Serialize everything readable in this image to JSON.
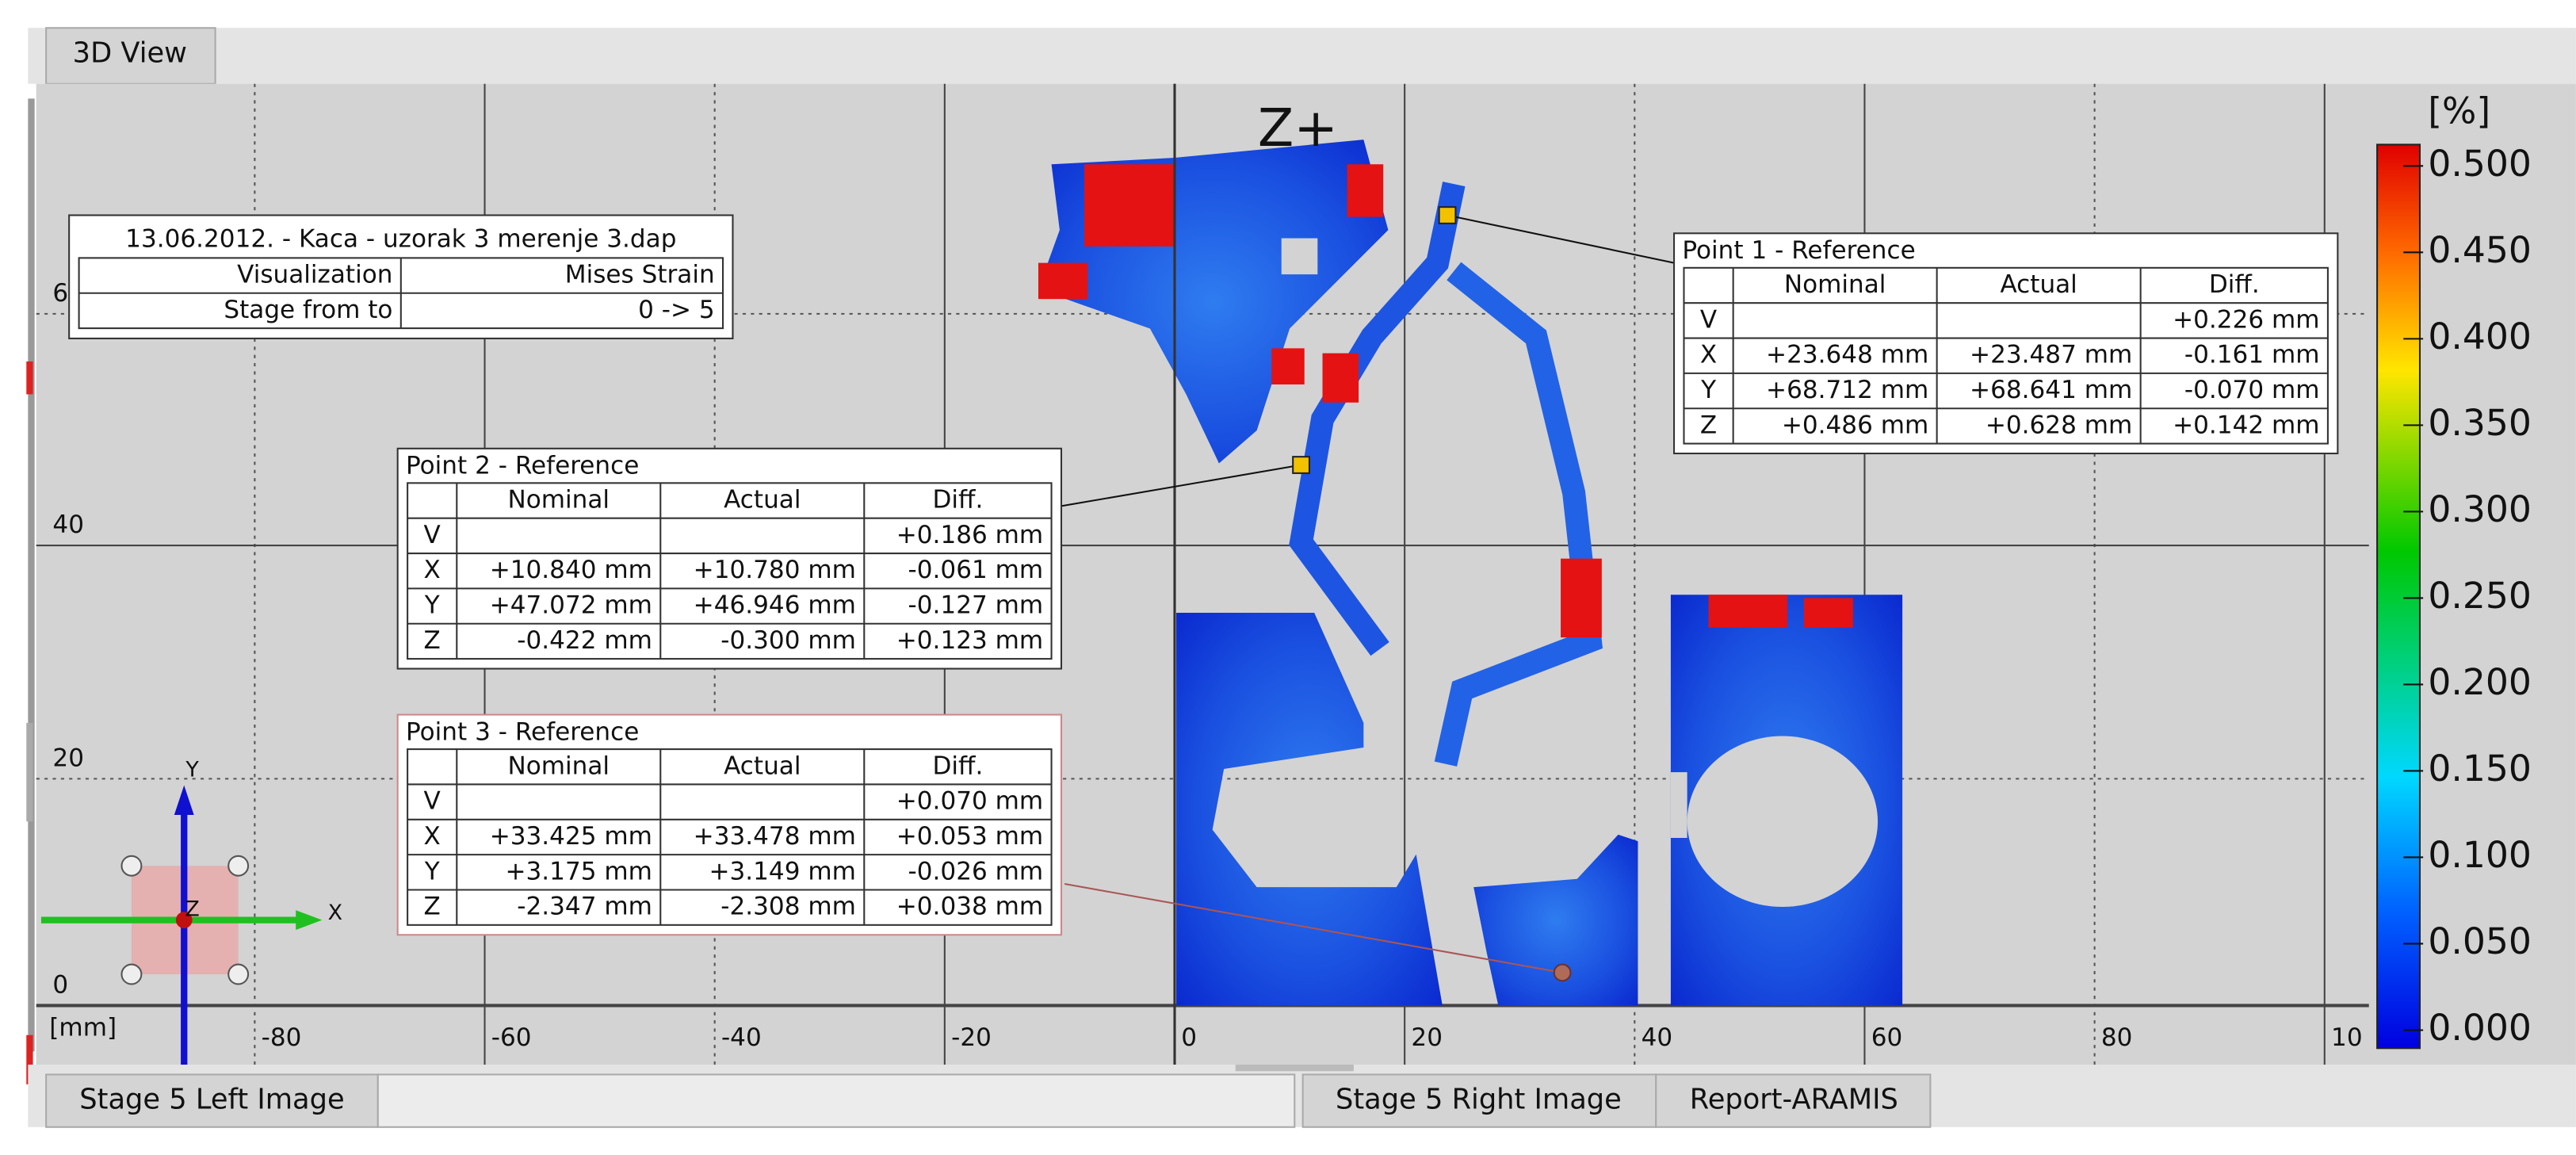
{
  "tabs": {
    "top": [
      "3D View"
    ],
    "bottom": [
      "Stage 5 Left Image",
      "Stage 5 Right Image",
      "Report-ARAMIS"
    ]
  },
  "view_label": "Z+",
  "axes": {
    "unit": "[mm]",
    "x_labels": [
      "-80",
      "-60",
      "-40",
      "-20",
      "0",
      "20",
      "40",
      "60",
      "80",
      "10"
    ],
    "y_labels": [
      "6",
      "40",
      "20",
      "0"
    ]
  },
  "triad": {
    "y": "Y",
    "z": "Z",
    "x": "X"
  },
  "info_table": {
    "title": "13.06.2012. - Kaca - uzorak 3 merenje 3.dap",
    "rows": [
      [
        "Visualization",
        "Mises Strain"
      ],
      [
        "Stage from to",
        "0 -> 5"
      ]
    ]
  },
  "points": [
    {
      "title": "Point 1 - Reference",
      "header": [
        "Nominal",
        "Actual",
        "Diff."
      ],
      "rows": [
        {
          "axis": "V",
          "diff": "+0.226 mm"
        },
        {
          "axis": "X",
          "nominal": "+23.648 mm",
          "actual": "+23.487 mm",
          "diff": "-0.161 mm"
        },
        {
          "axis": "Y",
          "nominal": "+68.712 mm",
          "actual": "+68.641 mm",
          "diff": "-0.070 mm"
        },
        {
          "axis": "Z",
          "nominal": "+0.486 mm",
          "actual": "+0.628 mm",
          "diff": "+0.142 mm"
        }
      ]
    },
    {
      "title": "Point 2 - Reference",
      "header": [
        "Nominal",
        "Actual",
        "Diff."
      ],
      "rows": [
        {
          "axis": "V",
          "diff": "+0.186 mm"
        },
        {
          "axis": "X",
          "nominal": "+10.840 mm",
          "actual": "+10.780 mm",
          "diff": "-0.061 mm"
        },
        {
          "axis": "Y",
          "nominal": "+47.072 mm",
          "actual": "+46.946 mm",
          "diff": "-0.127 mm"
        },
        {
          "axis": "Z",
          "nominal": "-0.422 mm",
          "actual": "-0.300 mm",
          "diff": "+0.123 mm"
        }
      ]
    },
    {
      "title": "Point 3 - Reference",
      "header": [
        "Nominal",
        "Actual",
        "Diff."
      ],
      "rows": [
        {
          "axis": "V",
          "diff": "+0.070 mm"
        },
        {
          "axis": "X",
          "nominal": "+33.425 mm",
          "actual": "+33.478 mm",
          "diff": "+0.053 mm"
        },
        {
          "axis": "Y",
          "nominal": "+3.175 mm",
          "actual": "+3.149 mm",
          "diff": "-0.026 mm"
        },
        {
          "axis": "Z",
          "nominal": "-2.347 mm",
          "actual": "-2.308 mm",
          "diff": "+0.038 mm"
        }
      ]
    }
  ],
  "colorbar": {
    "unit": "[%]",
    "labels": [
      "0.500",
      "0.450",
      "0.400",
      "0.350",
      "0.300",
      "0.250",
      "0.200",
      "0.150",
      "0.100",
      "0.050",
      "0.000"
    ]
  }
}
